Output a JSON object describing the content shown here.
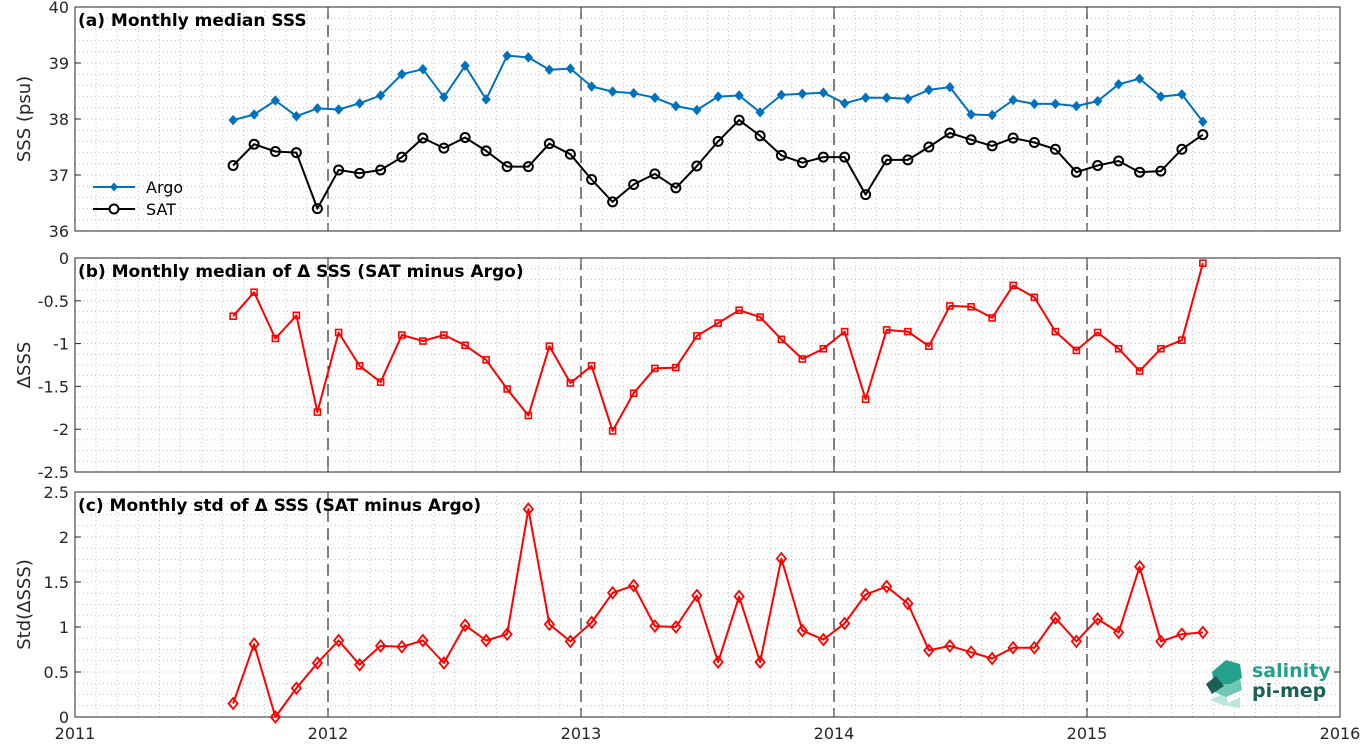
{
  "chart_data": [
    {
      "type": "line",
      "title": "(a) Monthly median SSS",
      "ylabel": "SSS (psu)",
      "ylim": [
        36,
        40
      ],
      "yticks": [
        "36",
        "37",
        "38",
        "39",
        "40"
      ],
      "xlim": [
        2011,
        2016
      ],
      "grid": true,
      "legend_position": "left",
      "series": [
        {
          "name": "Argo",
          "color": "#0072bd",
          "marker": "diamond-filled",
          "x": [
            2011.625,
            2011.708,
            2011.792,
            2011.875,
            2011.958,
            2012.042,
            2012.125,
            2012.208,
            2012.292,
            2012.375,
            2012.458,
            2012.542,
            2012.625,
            2012.708,
            2012.792,
            2012.875,
            2012.958,
            2013.042,
            2013.125,
            2013.208,
            2013.292,
            2013.375,
            2013.458,
            2013.542,
            2013.625,
            2013.708,
            2013.792,
            2013.875,
            2013.958,
            2014.042,
            2014.125,
            2014.208,
            2014.292,
            2014.375,
            2014.458,
            2014.542,
            2014.625,
            2014.708,
            2014.792,
            2014.875,
            2014.958,
            2015.042,
            2015.125,
            2015.208,
            2015.292,
            2015.375,
            2015.458
          ],
          "y": [
            37.98,
            38.08,
            38.33,
            38.05,
            38.19,
            38.17,
            38.28,
            38.42,
            38.8,
            38.89,
            38.39,
            38.95,
            38.35,
            39.13,
            39.1,
            38.88,
            38.9,
            38.58,
            38.49,
            38.46,
            38.38,
            38.23,
            38.16,
            38.4,
            38.42,
            38.12,
            38.43,
            38.45,
            38.47,
            38.28,
            38.38,
            38.38,
            38.36,
            38.52,
            38.57,
            38.08,
            38.07,
            38.34,
            38.27,
            38.27,
            38.23,
            38.32,
            38.62,
            38.72,
            38.4,
            38.44,
            37.95
          ]
        },
        {
          "name": "SAT",
          "color": "#000000",
          "marker": "circle-open",
          "x": [
            2011.625,
            2011.708,
            2011.792,
            2011.875,
            2011.958,
            2012.042,
            2012.125,
            2012.208,
            2012.292,
            2012.375,
            2012.458,
            2012.542,
            2012.625,
            2012.708,
            2012.792,
            2012.875,
            2012.958,
            2013.042,
            2013.125,
            2013.208,
            2013.292,
            2013.375,
            2013.458,
            2013.542,
            2013.625,
            2013.708,
            2013.792,
            2013.875,
            2013.958,
            2014.042,
            2014.125,
            2014.208,
            2014.292,
            2014.375,
            2014.458,
            2014.542,
            2014.625,
            2014.708,
            2014.792,
            2014.875,
            2014.958,
            2015.042,
            2015.125,
            2015.208,
            2015.292,
            2015.375,
            2015.458
          ],
          "y": [
            37.17,
            37.55,
            37.42,
            37.4,
            36.4,
            37.09,
            37.03,
            37.09,
            37.32,
            37.66,
            37.48,
            37.67,
            37.43,
            37.15,
            37.15,
            37.56,
            37.37,
            36.92,
            36.52,
            36.83,
            37.02,
            36.77,
            37.16,
            37.6,
            37.98,
            37.7,
            37.35,
            37.22,
            37.32,
            37.32,
            36.65,
            37.27,
            37.27,
            37.5,
            37.75,
            37.63,
            37.52,
            37.66,
            37.58,
            37.46,
            37.05,
            37.17,
            37.25,
            37.05,
            37.07,
            37.46,
            37.72
          ]
        }
      ]
    },
    {
      "type": "line",
      "title": "(b) Monthly median of Δ SSS (SAT minus Argo)",
      "ylabel": "ΔSSS",
      "ylim": [
        -2.5,
        0
      ],
      "yticks": [
        "-2.5",
        "-2",
        "-1.5",
        "-1",
        "-0.5",
        "0"
      ],
      "xlim": [
        2011,
        2016
      ],
      "grid": true,
      "reference_line": 0,
      "series": [
        {
          "color": "#ff0000",
          "marker": "square-open",
          "x": [
            2011.625,
            2011.708,
            2011.792,
            2011.875,
            2011.958,
            2012.042,
            2012.125,
            2012.208,
            2012.292,
            2012.375,
            2012.458,
            2012.542,
            2012.625,
            2012.708,
            2012.792,
            2012.875,
            2012.958,
            2013.042,
            2013.125,
            2013.208,
            2013.292,
            2013.375,
            2013.458,
            2013.542,
            2013.625,
            2013.708,
            2013.792,
            2013.875,
            2013.958,
            2014.042,
            2014.125,
            2014.208,
            2014.292,
            2014.375,
            2014.458,
            2014.542,
            2014.625,
            2014.708,
            2014.792,
            2014.875,
            2014.958,
            2015.042,
            2015.125,
            2015.208,
            2015.292,
            2015.375,
            2015.458
          ],
          "y": [
            -0.68,
            -0.4,
            -0.94,
            -0.67,
            -1.8,
            -0.87,
            -1.26,
            -1.45,
            -0.9,
            -0.97,
            -0.9,
            -1.02,
            -1.19,
            -1.53,
            -1.84,
            -1.03,
            -1.46,
            -1.26,
            -2.02,
            -1.58,
            -1.29,
            -1.28,
            -0.91,
            -0.76,
            -0.61,
            -0.69,
            -0.95,
            -1.18,
            -1.06,
            -0.86,
            -1.65,
            -0.84,
            -0.86,
            -1.03,
            -0.56,
            -0.57,
            -0.7,
            -0.32,
            -0.46,
            -0.86,
            -1.08,
            -0.87,
            -1.06,
            -1.32,
            -1.06,
            -0.96,
            -0.06
          ]
        }
      ]
    },
    {
      "type": "line",
      "title": "(c) Monthly std of Δ SSS (SAT minus Argo)",
      "ylabel": "Std(ΔSSS)",
      "ylim": [
        0,
        2.5
      ],
      "yticks": [
        "0",
        "0.5",
        "1",
        "1.5",
        "2",
        "2.5"
      ],
      "xlim": [
        2011,
        2016
      ],
      "xticks": [
        "2011",
        "2012",
        "2013",
        "2014",
        "2015",
        "2016"
      ],
      "grid": true,
      "series": [
        {
          "color": "#ff0000",
          "marker": "diamond-open",
          "x": [
            2011.625,
            2011.708,
            2011.792,
            2011.875,
            2011.958,
            2012.042,
            2012.125,
            2012.208,
            2012.292,
            2012.375,
            2012.458,
            2012.542,
            2012.625,
            2012.708,
            2012.792,
            2012.875,
            2012.958,
            2013.042,
            2013.125,
            2013.208,
            2013.292,
            2013.375,
            2013.458,
            2013.542,
            2013.625,
            2013.708,
            2013.792,
            2013.875,
            2013.958,
            2014.042,
            2014.125,
            2014.208,
            2014.292,
            2014.375,
            2014.458,
            2014.542,
            2014.625,
            2014.708,
            2014.792,
            2014.875,
            2014.958,
            2015.042,
            2015.125,
            2015.208,
            2015.292,
            2015.375,
            2015.458
          ],
          "y": [
            0.15,
            0.81,
            0.0,
            0.32,
            0.6,
            0.85,
            0.58,
            0.79,
            0.78,
            0.85,
            0.6,
            1.02,
            0.85,
            0.92,
            2.31,
            1.03,
            0.84,
            1.05,
            1.38,
            1.46,
            1.01,
            1.0,
            1.35,
            0.61,
            1.34,
            0.61,
            1.76,
            0.96,
            0.86,
            1.04,
            1.36,
            1.45,
            1.26,
            0.74,
            0.79,
            0.72,
            0.65,
            0.77,
            0.77,
            1.1,
            0.84,
            1.09,
            0.94,
            1.67,
            0.84,
            0.92,
            0.94
          ]
        }
      ]
    }
  ],
  "logo": {
    "line1": "salinity",
    "line2": "pi-mep"
  },
  "colors": {
    "argo": "#0072bd",
    "sat": "#000000",
    "delta": "#ff0000",
    "logo_light": "#25a08c",
    "logo_dark": "#1c5f55"
  }
}
